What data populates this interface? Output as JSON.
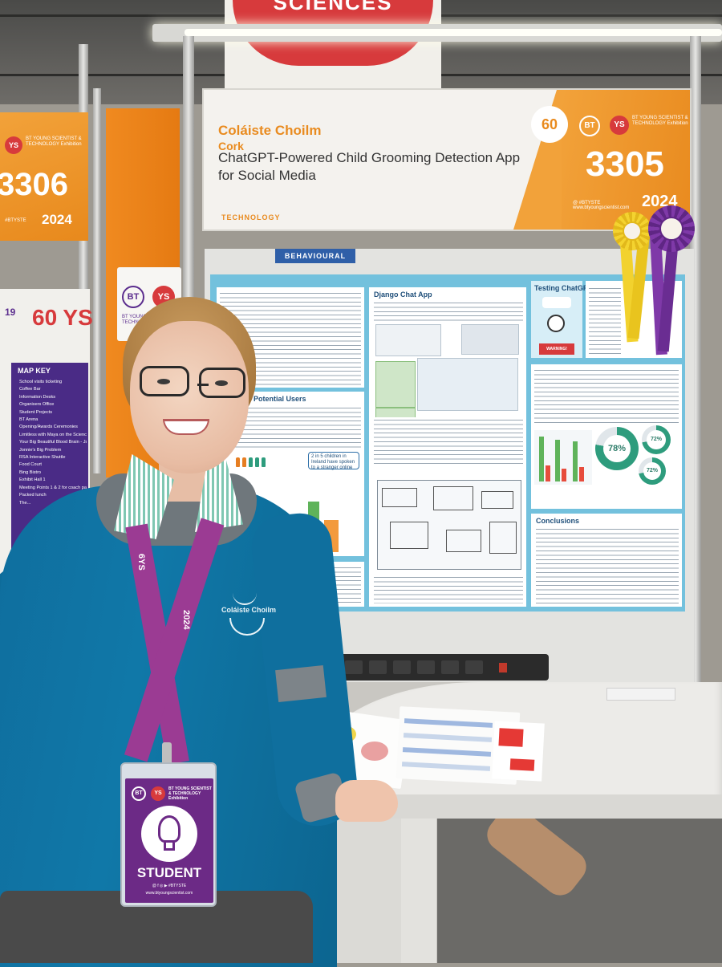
{
  "top_sign": {
    "text": "SCIENCES"
  },
  "header_sign": {
    "school": "Coláiste Choilm",
    "city": "Cork",
    "project_title": "ChatGPT-Powered Child Grooming Detection App for Social Media",
    "category": "TECHNOLOGY",
    "stand_number": "3305",
    "years_badge": "60",
    "bt_logo": "BT",
    "ys_logo": "YS",
    "exhibition_name": "BT YOUNG SCIENTIST & TECHNOLOGY Exhibition",
    "hashtag": "@ #BTYSTE",
    "website": "www.btyoungscientist.com",
    "year": "2024"
  },
  "category_strip": {
    "text": "BEHAVIOURAL"
  },
  "left_booth": {
    "stand_number": "3306",
    "ys_logo": "YS",
    "exhibition_name": "BT YOUNG SCIENTIST & TECHNOLOGY Exhibition",
    "hashtag": "#BTYSTE",
    "year": "2024"
  },
  "left_card": {
    "bt_logo": "BT",
    "ys_logo": "YS",
    "name": "BT YOUNG SCIENTIST & TECHNOLOGY Exhibition"
  },
  "map_board": {
    "years": "60 YS",
    "prefix": "19",
    "title": "MAP KEY",
    "items": [
      "School visits ticketing",
      "Coffee Bar",
      "Information Desks",
      "Organisers Office",
      "Student Projects",
      "BT Arena",
      "Opening/Awards Ceremonies",
      "Limitless with Maya on the Science Guy",
      "Your Big Beautiful Blood Brain - James Soper",
      "Jonnie's Big Problem",
      "RSA Interactive Shuttle",
      "Food Court",
      "Bing Bistro",
      "Exhibit Hall 1",
      "Meeting Points 1 & 2 for coach party departure",
      "Packed lunch",
      "The..."
    ]
  },
  "poster": {
    "section_users": "Potential Users",
    "stat_callout": "2 in 5 children in Ireland have spoken to a stranger online",
    "section_app": "Django Chat App",
    "section_testing": "Testing ChatGPT",
    "warning_label": "WARNING!",
    "donut_1": "78%",
    "donut_2": "72%",
    "donut_3": "72%",
    "section_conclusions": "Conclusions"
  },
  "badge": {
    "bt_logo": "BT",
    "ys_logo": "YS",
    "brand": "BT YOUNG SCIENTIST & TECHNOLOGY Exhibition",
    "role": "STUDENT",
    "social": "@ f ◎ ▶ #BTYSTE",
    "website": "www.btyoungscientist.com"
  },
  "lanyard": {
    "text_left": "6YS",
    "text_right": "2024"
  },
  "jumper_crest": {
    "text": "Coláiste Choilm"
  },
  "colors": {
    "orange": "#e98b1f",
    "red": "#d73a3c",
    "purple": "#6c2a86",
    "poster_blue": "#73c1dd",
    "jumper_teal": "#1078a8"
  }
}
